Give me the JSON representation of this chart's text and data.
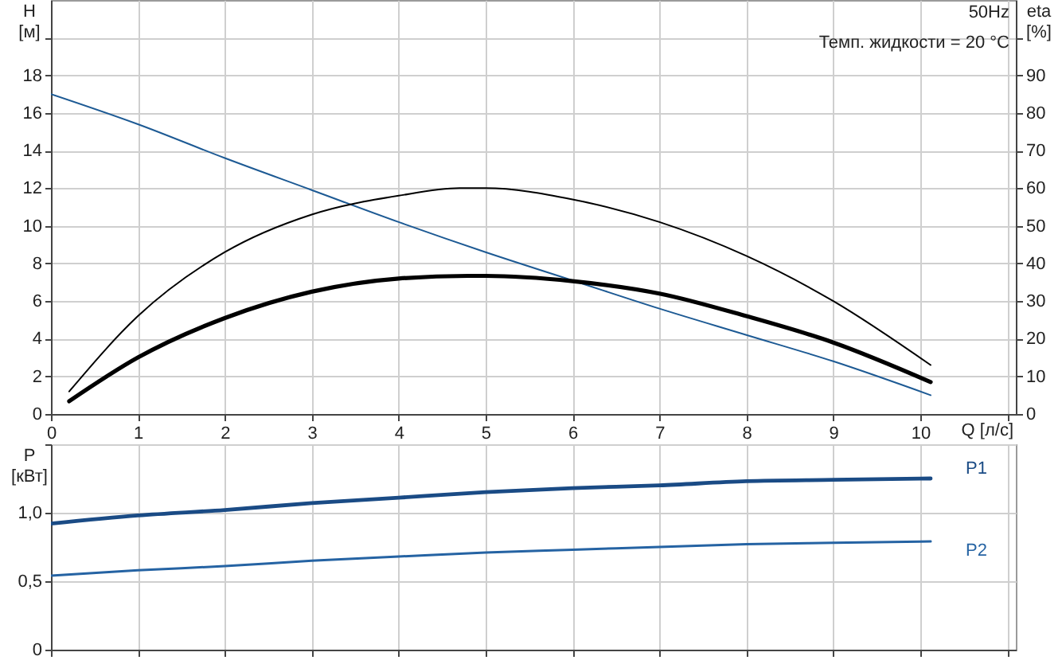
{
  "chart_data": [
    {
      "type": "line",
      "annotations": [
        "50Hz",
        "Темп. жидкости = 20 °C"
      ],
      "xlabel": "Q [л/с]",
      "ylabel": "H [м]",
      "y2label": "eta [%]",
      "xlim": [
        0,
        11.1
      ],
      "xticks": [
        0,
        1,
        2,
        3,
        4,
        5,
        6,
        7,
        8,
        9,
        10,
        {
          "value": 11,
          "label": null
        }
      ],
      "ylim": [
        0,
        22
      ],
      "yticks": [
        0,
        2,
        4,
        6,
        8,
        10,
        12,
        14,
        16,
        18,
        {
          "value": 20,
          "label": null
        }
      ],
      "y2lim": [
        0,
        110
      ],
      "y2ticks": [
        0,
        10,
        20,
        30,
        40,
        50,
        60,
        70,
        80,
        90,
        {
          "value": 100,
          "label": null
        }
      ],
      "grid": true,
      "series": [
        {
          "color": "#1d5a94",
          "x": [
            0,
            1,
            2,
            3,
            4,
            5,
            6,
            7,
            8,
            9,
            10.12
          ],
          "values": [
            17.0,
            15.4,
            13.6,
            11.9,
            10.2,
            8.6,
            7.1,
            5.6,
            4.2,
            2.8,
            1.0
          ]
        },
        {
          "color": "#000000",
          "axis": "y2",
          "x": [
            0.21,
            1,
            2,
            3,
            4,
            4.7,
            5,
            6,
            7,
            8,
            9,
            10.12
          ],
          "values": [
            6,
            26,
            43,
            53,
            58,
            60,
            60,
            57,
            51,
            42,
            30,
            13
          ]
        },
        {
          "color": "#000000",
          "axis": "y2",
          "x": [
            0.21,
            1,
            2,
            3,
            4,
            4.8,
            5,
            6,
            7,
            8,
            9,
            10.12
          ],
          "values": [
            3.4,
            15,
            25.5,
            32.5,
            36,
            36.7,
            36.7,
            35.3,
            32,
            26,
            19,
            8.5
          ]
        }
      ]
    },
    {
      "type": "line",
      "ylabel": "P [кВт]",
      "tick_labels": "y",
      "xlim": [
        0,
        11.1
      ],
      "xticks": [
        0,
        1,
        2,
        3,
        4,
        5,
        6,
        7,
        8,
        9,
        10,
        {
          "value": 11,
          "label": null
        }
      ],
      "ylim": [
        0,
        1.5
      ],
      "yticks": [
        0,
        {
          "value": 0.5,
          "label": "0,5"
        },
        {
          "value": 1,
          "label": "1,0"
        },
        {
          "value": 1.5,
          "label": null
        }
      ],
      "grid": true,
      "series": [
        {
          "name": "P1",
          "color": "#1a4b85",
          "x": [
            0,
            1,
            2,
            3,
            4,
            5,
            6,
            7,
            8,
            9,
            10.12
          ],
          "values": [
            0.92,
            0.98,
            1.02,
            1.07,
            1.11,
            1.15,
            1.18,
            1.2,
            1.23,
            1.24,
            1.25
          ]
        },
        {
          "name": "P2",
          "color": "#2563a3",
          "x": [
            0,
            1,
            2,
            3,
            4,
            5,
            6,
            7,
            8,
            9,
            10.12
          ],
          "values": [
            0.54,
            0.58,
            0.61,
            0.65,
            0.68,
            0.71,
            0.73,
            0.75,
            0.77,
            0.78,
            0.79
          ]
        }
      ]
    }
  ]
}
